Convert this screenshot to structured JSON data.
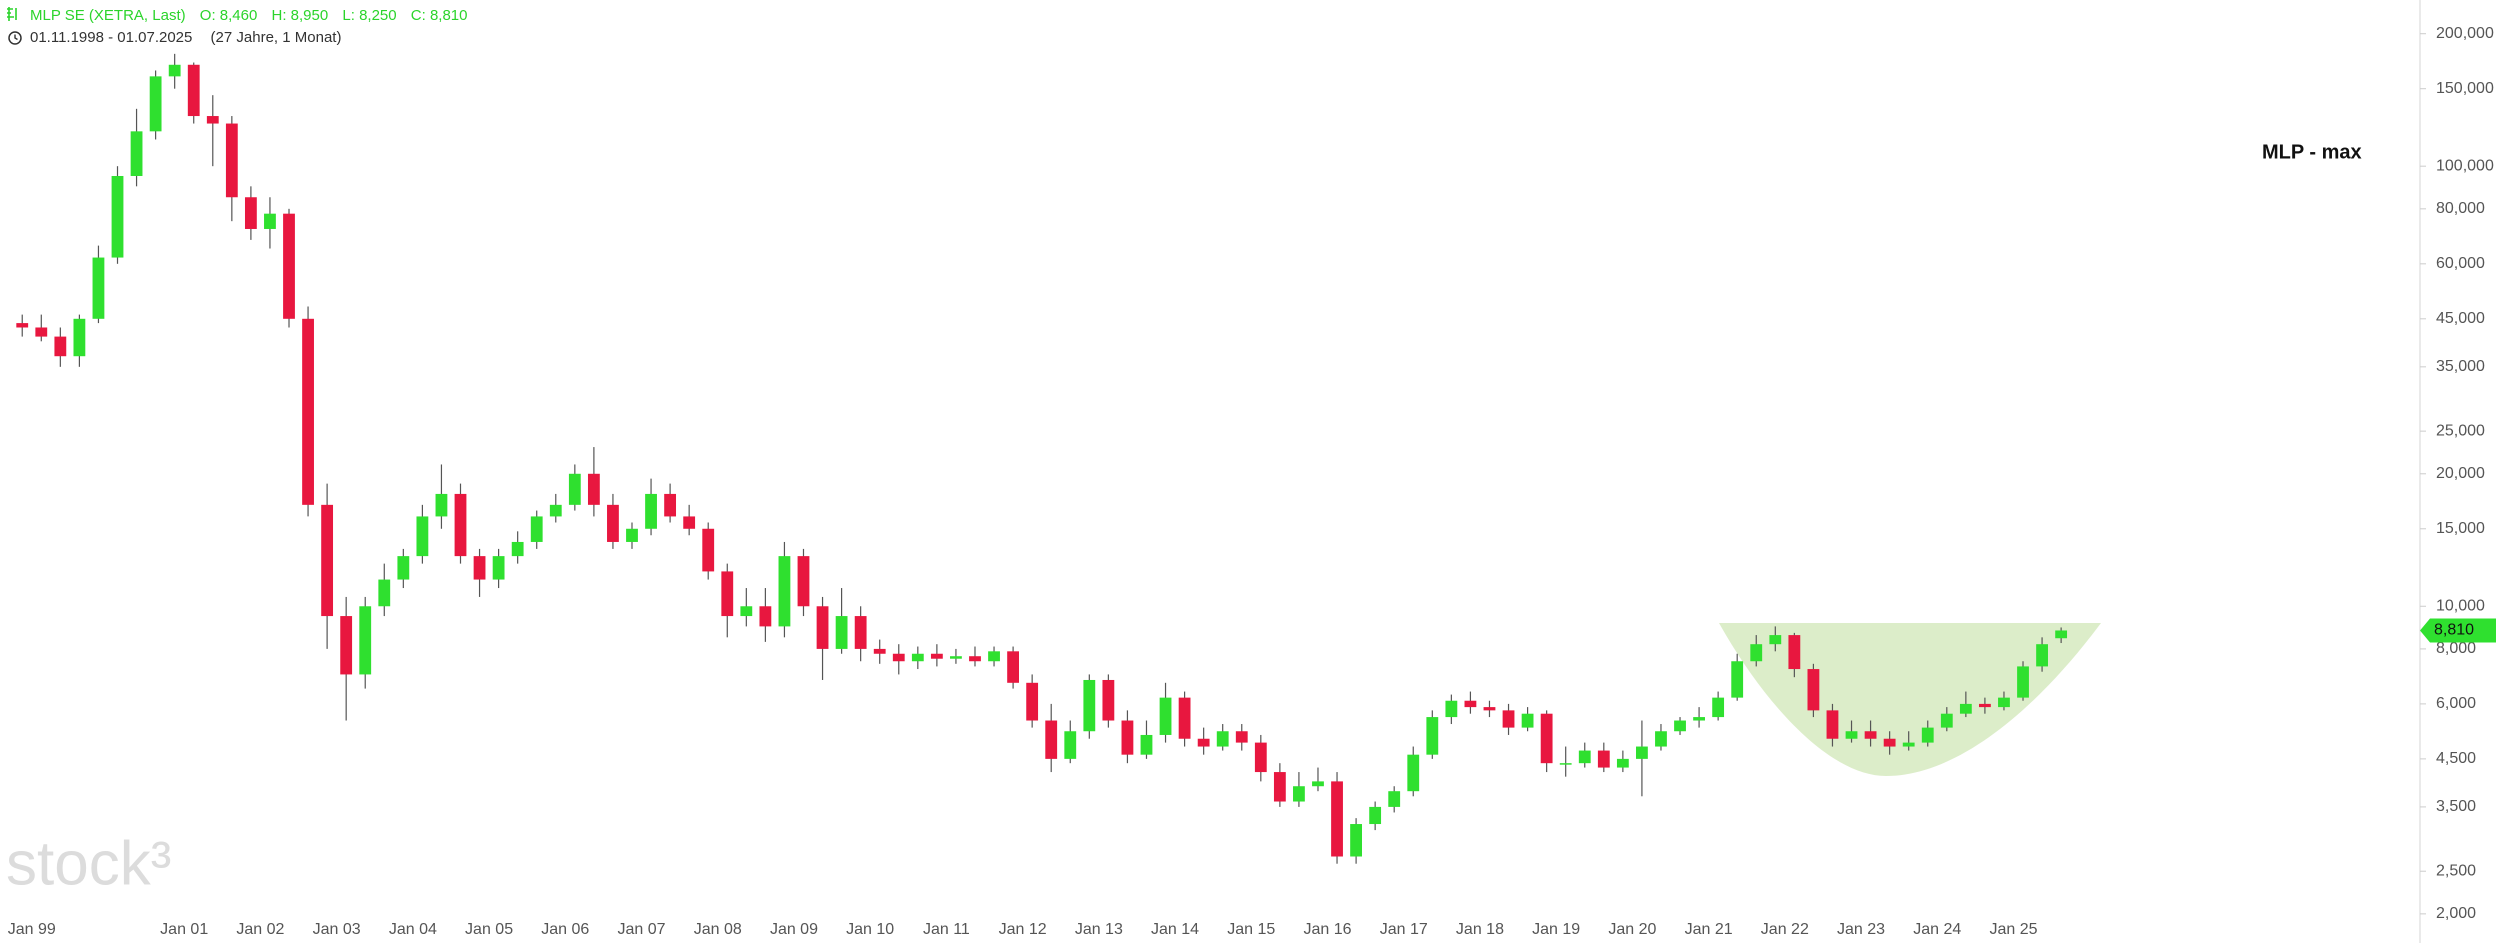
{
  "chart_data": {
    "type": "candlestick",
    "header": {
      "instrument": "MLP SE (XETRA, Last)",
      "ohlc_labels": [
        "O: 8,460",
        "H: 8,950",
        "L: 8,250",
        "C: 8,810"
      ],
      "period": "01.11.1998 - 01.07.2025",
      "span": "(27 Jahre, 1 Monat)"
    },
    "title": "MLP - max",
    "watermark": "stock³",
    "up_color": "#2fe02f",
    "down_color": "#e8173f",
    "log_y": true,
    "grid": false,
    "x": [
      "1998-10",
      "1999-01",
      "1999-04",
      "1999-07",
      "1999-10",
      "2000-01",
      "2000-04",
      "2000-07",
      "2000-10",
      "2001-01",
      "2001-04",
      "2001-07",
      "2001-10",
      "2002-01",
      "2002-04",
      "2002-07",
      "2002-10",
      "2003-01",
      "2003-04",
      "2003-07",
      "2003-10",
      "2004-01",
      "2004-04",
      "2004-07",
      "2004-10",
      "2005-01",
      "2005-04",
      "2005-07",
      "2005-10",
      "2006-01",
      "2006-04",
      "2006-07",
      "2006-10",
      "2007-01",
      "2007-04",
      "2007-07",
      "2007-10",
      "2008-01",
      "2008-04",
      "2008-07",
      "2008-10",
      "2009-01",
      "2009-04",
      "2009-07",
      "2009-10",
      "2010-01",
      "2010-04",
      "2010-07",
      "2010-10",
      "2011-01",
      "2011-04",
      "2011-07",
      "2011-10",
      "2012-01",
      "2012-04",
      "2012-07",
      "2012-10",
      "2013-01",
      "2013-04",
      "2013-07",
      "2013-10",
      "2014-01",
      "2014-04",
      "2014-07",
      "2014-10",
      "2015-01",
      "2015-04",
      "2015-07",
      "2015-10",
      "2016-01",
      "2016-04",
      "2016-07",
      "2016-10",
      "2017-01",
      "2017-04",
      "2017-07",
      "2017-10",
      "2018-01",
      "2018-04",
      "2018-07",
      "2018-10",
      "2019-01",
      "2019-04",
      "2019-07",
      "2019-10",
      "2020-01",
      "2020-04",
      "2020-07",
      "2020-10",
      "2021-01",
      "2021-04",
      "2021-07",
      "2021-10",
      "2022-01",
      "2022-04",
      "2022-07",
      "2022-10",
      "2023-01",
      "2023-04",
      "2023-07",
      "2023-10",
      "2024-01",
      "2024-04",
      "2024-07",
      "2024-10",
      "2025-01",
      "2025-04",
      "2025-07"
    ],
    "open": [
      44,
      43,
      41,
      37,
      45,
      62,
      95,
      120,
      160,
      170,
      130,
      125,
      85,
      72,
      78,
      45,
      17,
      9.5,
      7,
      10,
      11.5,
      13,
      16,
      18,
      13,
      11.5,
      13,
      14,
      16,
      17,
      20,
      17,
      14,
      15,
      18,
      16,
      15,
      12,
      9.5,
      10,
      9,
      13,
      10,
      8,
      9.5,
      8,
      7.8,
      7.5,
      7.8,
      7.6,
      7.7,
      7.5,
      7.9,
      6.7,
      5.5,
      4.5,
      5.2,
      6.8,
      5.5,
      4.6,
      5.1,
      6.2,
      5.0,
      4.8,
      5.2,
      4.9,
      4.2,
      3.6,
      3.9,
      4.0,
      2.7,
      3.2,
      3.5,
      3.8,
      4.6,
      5.6,
      6.1,
      5.9,
      5.8,
      5.3,
      5.7,
      4.4,
      4.4,
      4.7,
      4.3,
      4.5,
      4.8,
      5.2,
      5.5,
      5.6,
      6.2,
      7.5,
      8.2,
      8.6,
      7.2,
      5.8,
      5.0,
      5.2,
      5.0,
      4.8,
      4.9,
      5.3,
      5.7,
      6.0,
      5.9,
      6.2,
      7.3,
      8.46
    ],
    "high": [
      46,
      46,
      43,
      46,
      66,
      100,
      135,
      165,
      180,
      172,
      145,
      130,
      90,
      85,
      80,
      48,
      19,
      10.5,
      10.5,
      12.5,
      13.5,
      17,
      21,
      19,
      13.5,
      13.5,
      14.8,
      16.5,
      18,
      21,
      23,
      18,
      15.5,
      19.5,
      19,
      17,
      15.5,
      12.5,
      11,
      11,
      14,
      13.5,
      10.5,
      11,
      10,
      8.4,
      8.2,
      8.1,
      8.2,
      8,
      8.1,
      8.1,
      8.1,
      7,
      6,
      5.5,
      7,
      7,
      5.8,
      5.5,
      6.7,
      6.4,
      5.3,
      5.4,
      5.4,
      5.1,
      4.4,
      4.2,
      4.3,
      4.2,
      3.3,
      3.6,
      3.9,
      4.8,
      5.8,
      6.3,
      6.4,
      6.1,
      6.0,
      5.9,
      5.8,
      4.8,
      4.9,
      4.9,
      4.7,
      5.5,
      5.4,
      5.6,
      5.9,
      6.4,
      7.8,
      8.6,
      9.0,
      8.7,
      7.4,
      6.0,
      5.5,
      5.5,
      5.2,
      5.2,
      5.5,
      5.9,
      6.4,
      6.2,
      6.4,
      7.5,
      8.5,
      8.95
    ],
    "low": [
      41,
      40,
      35,
      35,
      44,
      60,
      90,
      115,
      150,
      125,
      100,
      75,
      68,
      65,
      43,
      16,
      8,
      5.5,
      6.5,
      9.5,
      11,
      12.5,
      15,
      12.5,
      10.5,
      11,
      12.5,
      13.5,
      15.5,
      16.5,
      16,
      13.5,
      13.5,
      14.5,
      15.5,
      14.5,
      11.5,
      8.5,
      9,
      8.3,
      8.5,
      9.5,
      6.8,
      7.8,
      7.5,
      7.4,
      7,
      7.2,
      7.3,
      7.4,
      7.3,
      7.3,
      6.5,
      5.3,
      4.2,
      4.4,
      5.0,
      5.3,
      4.4,
      4.5,
      4.9,
      4.8,
      4.6,
      4.7,
      4.7,
      4.0,
      3.5,
      3.5,
      3.8,
      2.6,
      2.6,
      3.1,
      3.4,
      3.7,
      4.5,
      5.4,
      5.7,
      5.6,
      5.1,
      5.2,
      4.2,
      4.1,
      4.3,
      4.2,
      4.2,
      3.7,
      4.7,
      5.1,
      5.3,
      5.5,
      6.1,
      7.3,
      7.9,
      6.9,
      5.6,
      4.8,
      4.9,
      4.8,
      4.6,
      4.7,
      4.8,
      5.2,
      5.6,
      5.7,
      5.8,
      6.1,
      7.1,
      8.25
    ],
    "close": [
      43,
      41,
      37,
      45,
      62,
      95,
      120,
      160,
      170,
      130,
      125,
      85,
      72,
      78,
      45,
      17,
      9.5,
      7,
      10,
      11.5,
      13,
      16,
      18,
      13,
      11.5,
      13,
      14,
      16,
      17,
      20,
      17,
      14,
      15,
      18,
      16,
      15,
      12,
      9.5,
      10,
      9,
      13,
      10,
      8,
      9.5,
      8,
      7.8,
      7.5,
      7.8,
      7.6,
      7.7,
      7.5,
      7.9,
      6.7,
      5.5,
      4.5,
      5.2,
      6.8,
      5.5,
      4.6,
      5.1,
      6.2,
      5.0,
      4.8,
      5.2,
      4.9,
      4.2,
      3.6,
      3.9,
      4.0,
      2.7,
      3.2,
      3.5,
      3.8,
      4.6,
      5.6,
      6.1,
      5.9,
      5.8,
      5.3,
      5.7,
      4.4,
      4.4,
      4.7,
      4.3,
      4.5,
      4.8,
      5.2,
      5.5,
      5.6,
      6.2,
      7.5,
      8.2,
      8.6,
      7.2,
      5.8,
      5.0,
      5.2,
      5.0,
      4.8,
      4.9,
      5.3,
      5.7,
      6.0,
      5.9,
      6.2,
      7.3,
      8.2,
      8.81
    ],
    "last_price": {
      "value": 8.81,
      "label": "8,810"
    },
    "xlim": [
      "1998-08",
      "2030-05"
    ],
    "xticks": [
      {
        "value": "1999-01",
        "label": "Jan 99"
      },
      {
        "value": "2001-01",
        "label": "Jan 01"
      },
      {
        "value": "2002-01",
        "label": "Jan 02"
      },
      {
        "value": "2003-01",
        "label": "Jan 03"
      },
      {
        "value": "2004-01",
        "label": "Jan 04"
      },
      {
        "value": "2005-01",
        "label": "Jan 05"
      },
      {
        "value": "2006-01",
        "label": "Jan 06"
      },
      {
        "value": "2007-01",
        "label": "Jan 07"
      },
      {
        "value": "2008-01",
        "label": "Jan 08"
      },
      {
        "value": "2009-01",
        "label": "Jan 09"
      },
      {
        "value": "2010-01",
        "label": "Jan 10"
      },
      {
        "value": "2011-01",
        "label": "Jan 11"
      },
      {
        "value": "2012-01",
        "label": "Jan 12"
      },
      {
        "value": "2013-01",
        "label": "Jan 13"
      },
      {
        "value": "2014-01",
        "label": "Jan 14"
      },
      {
        "value": "2015-01",
        "label": "Jan 15"
      },
      {
        "value": "2016-01",
        "label": "Jan 16"
      },
      {
        "value": "2017-01",
        "label": "Jan 17"
      },
      {
        "value": "2018-01",
        "label": "Jan 18"
      },
      {
        "value": "2019-01",
        "label": "Jan 19"
      },
      {
        "value": "2020-01",
        "label": "Jan 20"
      },
      {
        "value": "2021-01",
        "label": "Jan 21"
      },
      {
        "value": "2022-01",
        "label": "Jan 22"
      },
      {
        "value": "2023-01",
        "label": "Jan 23"
      },
      {
        "value": "2024-01",
        "label": "Jan 24"
      },
      {
        "value": "2025-01",
        "label": "Jan 25"
      }
    ],
    "ylim": [
      1.8,
      230
    ],
    "yticks": [
      {
        "value": 200,
        "label": "200,000"
      },
      {
        "value": 150,
        "label": "150,000"
      },
      {
        "value": 100,
        "label": "100,000"
      },
      {
        "value": 80,
        "label": "80,000"
      },
      {
        "value": 60,
        "label": "60,000"
      },
      {
        "value": 45,
        "label": "45,000"
      },
      {
        "value": 35,
        "label": "35,000"
      },
      {
        "value": 25,
        "label": "25,000"
      },
      {
        "value": 20,
        "label": "20,000"
      },
      {
        "value": 15,
        "label": "15,000"
      },
      {
        "value": 10,
        "label": "10,000"
      },
      {
        "value": 8,
        "label": "8,000"
      },
      {
        "value": 6,
        "label": "6,000"
      },
      {
        "value": 4.5,
        "label": "4,500"
      },
      {
        "value": 3.5,
        "label": "3,500"
      },
      {
        "value": 2.5,
        "label": "2,500"
      },
      {
        "value": 2,
        "label": "2,000"
      }
    ]
  }
}
